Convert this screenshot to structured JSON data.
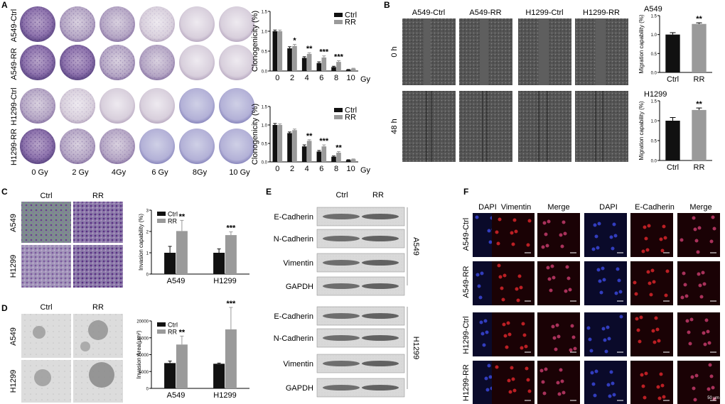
{
  "panels": {
    "A": {
      "letter": "A",
      "row_labels": [
        "A549-Ctrl",
        "A549-RR",
        "H1299-Ctrl",
        "H1299-RR"
      ],
      "col_labels": [
        "0 Gy",
        "2 Gy",
        "4Gy",
        "6 Gy",
        "8Gy",
        "10 Gy"
      ]
    },
    "B": {
      "letter": "B",
      "col_labels": [
        "A549-Ctrl",
        "A549-RR",
        "H1299-Ctrl",
        "H1299-RR"
      ],
      "row_labels": [
        "0 h",
        "48 h"
      ]
    },
    "C": {
      "letter": "C",
      "col_labels": [
        "Ctrl",
        "RR"
      ],
      "row_labels": [
        "A549",
        "H1299"
      ]
    },
    "D": {
      "letter": "D",
      "col_labels": [
        "Ctrl",
        "RR"
      ],
      "row_labels": [
        "A549",
        "H1299"
      ]
    },
    "E": {
      "letter": "E",
      "col_labels": [
        "Ctrl",
        "RR"
      ],
      "bands": [
        "E-Cadherin",
        "N-Cadherin",
        "Vimentin",
        "GAPDH",
        "E-Cadherin",
        "N-Cadherin",
        "Vimentin",
        "GAPDH"
      ],
      "groups": [
        "A549",
        "H1299"
      ]
    },
    "F": {
      "letter": "F",
      "col_labels": [
        "DAPI",
        "Vimentin",
        "Merge",
        "DAPI",
        "E-Cadherin",
        "Merge"
      ],
      "row_labels": [
        "A549-Ctrl",
        "A549-RR",
        "H1299-Ctrl",
        "H1299-RR"
      ],
      "scale_label": "50 μm"
    }
  },
  "chart_data": [
    {
      "id": "A-top",
      "type": "bar",
      "ylabel": "Clonogenicity (%)",
      "xlabel": "Gy",
      "categories": [
        "0",
        "2",
        "4",
        "6",
        "8",
        "10"
      ],
      "ylim": [
        0,
        1.5
      ],
      "yticks": [
        0,
        0.5,
        1.0,
        1.5
      ],
      "ytick_labels": [
        "0.0",
        "0.5",
        "1.0",
        "1.5"
      ],
      "series": [
        {
          "name": "Ctrl",
          "color": "#111111",
          "values": [
            1.0,
            0.57,
            0.33,
            0.2,
            0.1,
            0.03
          ],
          "errors": [
            0.03,
            0.04,
            0.03,
            0.03,
            0.02,
            0.01
          ]
        },
        {
          "name": "RR",
          "color": "#9a9a9a",
          "values": [
            1.0,
            0.63,
            0.43,
            0.34,
            0.23,
            0.06
          ],
          "errors": [
            0.03,
            0.04,
            0.03,
            0.04,
            0.03,
            0.01
          ]
        }
      ],
      "annotations": [
        "",
        "*",
        "**",
        "***",
        "***",
        ""
      ],
      "legend": "top-right"
    },
    {
      "id": "A-bottom",
      "type": "bar",
      "ylabel": "Clonogenicity (%)",
      "xlabel": "Gy",
      "categories": [
        "0",
        "2",
        "4",
        "6",
        "8",
        "10"
      ],
      "ylim": [
        0,
        1.5
      ],
      "yticks": [
        0,
        0.5,
        1.0,
        1.5
      ],
      "ytick_labels": [
        "0.0",
        "0.5",
        "1.0",
        "1.5"
      ],
      "series": [
        {
          "name": "Ctrl",
          "color": "#111111",
          "values": [
            1.0,
            0.78,
            0.42,
            0.28,
            0.14,
            0.05
          ],
          "errors": [
            0.04,
            0.03,
            0.04,
            0.03,
            0.02,
            0.01
          ]
        },
        {
          "name": "RR",
          "color": "#9a9a9a",
          "values": [
            1.0,
            0.86,
            0.57,
            0.42,
            0.25,
            0.07
          ],
          "errors": [
            0.03,
            0.03,
            0.03,
            0.04,
            0.03,
            0.01
          ]
        }
      ],
      "annotations": [
        "",
        "",
        "**",
        "***",
        "**",
        ""
      ],
      "legend": "top-right"
    },
    {
      "id": "B-A549",
      "type": "bar",
      "title": "A549",
      "ylabel": "Migration capability (%)",
      "categories": [
        "Ctrl",
        "RR"
      ],
      "ylim": [
        0,
        1.5
      ],
      "yticks": [
        0,
        0.5,
        1.0,
        1.5
      ],
      "ytick_labels": [
        "0.0",
        "0.5",
        "1.0",
        "1.5"
      ],
      "values": [
        1.0,
        1.28
      ],
      "errors": [
        0.05,
        0.03
      ],
      "colors": [
        "#111111",
        "#9a9a9a"
      ],
      "annotations": [
        "",
        "**"
      ]
    },
    {
      "id": "B-H1299",
      "type": "bar",
      "title": "H1299",
      "ylabel": "Migration capability (%)",
      "categories": [
        "Ctrl",
        "RR"
      ],
      "ylim": [
        0,
        1.5
      ],
      "yticks": [
        0,
        0.5,
        1.0,
        1.5
      ],
      "ytick_labels": [
        "0.0",
        "0.5",
        "1.0",
        "1.5"
      ],
      "values": [
        1.0,
        1.27
      ],
      "errors": [
        0.08,
        0.05
      ],
      "colors": [
        "#111111",
        "#9a9a9a"
      ],
      "annotations": [
        "",
        "**"
      ]
    },
    {
      "id": "C",
      "type": "bar",
      "ylabel": "Invasion capability (%)",
      "categories": [
        "A549",
        "H1299"
      ],
      "ylim": [
        0,
        3
      ],
      "yticks": [
        0,
        1,
        2,
        3
      ],
      "ytick_labels": [
        "0",
        "1",
        "2",
        "3"
      ],
      "series": [
        {
          "name": "Ctrl",
          "color": "#111111",
          "values": [
            1.0,
            1.0
          ],
          "errors": [
            0.3,
            0.18
          ]
        },
        {
          "name": "RR",
          "color": "#9a9a9a",
          "values": [
            2.02,
            1.83
          ],
          "errors": [
            0.5,
            0.15
          ]
        }
      ],
      "annotations": [
        "**",
        "***"
      ],
      "legend": "top-left"
    },
    {
      "id": "D",
      "type": "bar",
      "ylabel": "Invasion Area(μm²)",
      "categories": [
        "A549",
        "H1299"
      ],
      "ylim": [
        0,
        20000
      ],
      "yticks": [
        0,
        5000,
        10000,
        15000,
        20000
      ],
      "ytick_labels": [
        "0",
        "5000",
        "10000",
        "15000",
        "20000"
      ],
      "series": [
        {
          "name": "Ctrl",
          "color": "#111111",
          "values": [
            7500,
            7300
          ],
          "errors": [
            600,
            200
          ]
        },
        {
          "name": "RR",
          "color": "#9a9a9a",
          "values": [
            13000,
            17500
          ],
          "errors": [
            2500,
            6500
          ]
        }
      ],
      "annotations": [
        "**",
        "***"
      ],
      "legend": "top-left"
    }
  ]
}
